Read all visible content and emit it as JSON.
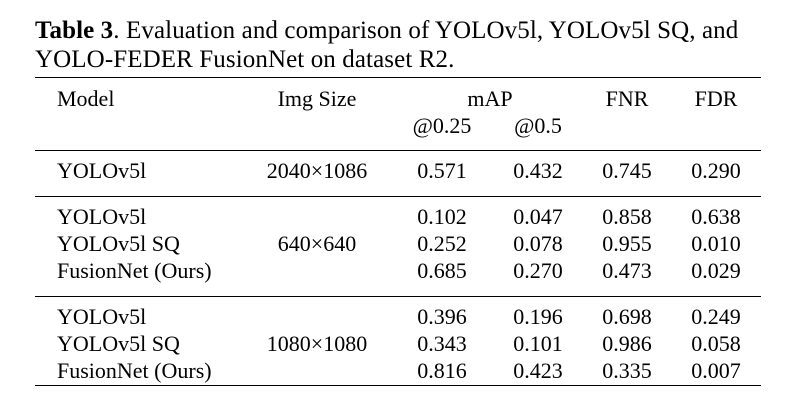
{
  "caption": {
    "label": "Table 3",
    "text": ".  Evaluation and comparison of YOLOv5l, YOLOv5l SQ, and YOLO-FEDER FusionNet on dataset R2."
  },
  "header": {
    "model": "Model",
    "img_size": "Img Size",
    "map": "mAP",
    "map_025": "@0.25",
    "map_05": "@0.5",
    "fnr": "FNR",
    "fdr": "FDR"
  },
  "groups": [
    {
      "img_size": "2040×1086",
      "rows": [
        {
          "model": "YOLOv5l",
          "map_025": "0.571",
          "map_05": "0.432",
          "fnr": "0.745",
          "fdr": "0.290"
        }
      ]
    },
    {
      "img_size": "640×640",
      "rows": [
        {
          "model": "YOLOv5l",
          "map_025": "0.102",
          "map_05": "0.047",
          "fnr": "0.858",
          "fdr": "0.638"
        },
        {
          "model": "YOLOv5l SQ",
          "map_025": "0.252",
          "map_05": "0.078",
          "fnr": "0.955",
          "fdr": "0.010"
        },
        {
          "model": "FusionNet (Ours)",
          "map_025": "0.685",
          "map_05": "0.270",
          "fnr": "0.473",
          "fdr": "0.029"
        }
      ]
    },
    {
      "img_size": "1080×1080",
      "rows": [
        {
          "model": "YOLOv5l",
          "map_025": "0.396",
          "map_05": "0.196",
          "fnr": "0.698",
          "fdr": "0.249"
        },
        {
          "model": "YOLOv5l SQ",
          "map_025": "0.343",
          "map_05": "0.101",
          "fnr": "0.986",
          "fdr": "0.058"
        },
        {
          "model": "FusionNet (Ours)",
          "map_025": "0.816",
          "map_05": "0.423",
          "fnr": "0.335",
          "fdr": "0.007"
        }
      ]
    }
  ]
}
